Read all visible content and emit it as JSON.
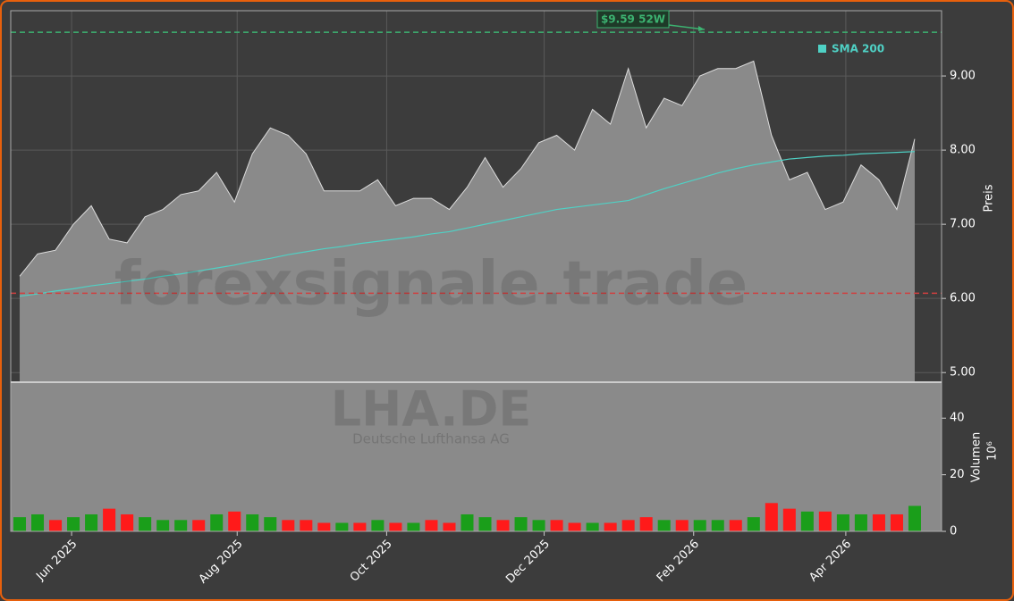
{
  "chart_data": [
    {
      "type": "area",
      "watermark": "forexsignale.trade",
      "ticker": "LHA.DE",
      "company": "Deutsche Lufthansa AG",
      "ylabel": "Preis",
      "annotation": "$9.59 52W",
      "x": [
        0,
        1,
        2,
        3,
        4,
        5,
        6,
        7,
        8,
        9,
        10,
        11,
        12,
        13,
        14,
        15,
        16,
        17,
        18,
        19,
        20,
        21,
        22,
        23,
        24,
        25,
        26,
        27,
        28,
        29,
        30,
        31,
        32,
        33,
        34,
        35,
        36,
        37,
        38,
        39,
        40,
        41,
        42,
        43,
        44,
        45,
        46,
        47,
        48,
        49,
        50
      ],
      "values": [
        6.3,
        6.6,
        6.65,
        7.0,
        7.25,
        6.8,
        6.75,
        7.1,
        7.2,
        7.4,
        7.45,
        7.7,
        7.3,
        7.95,
        8.3,
        8.2,
        7.95,
        7.45,
        7.45,
        7.45,
        7.6,
        7.25,
        7.35,
        7.35,
        7.2,
        7.5,
        7.9,
        7.5,
        7.75,
        8.1,
        8.2,
        8.0,
        8.55,
        8.35,
        9.1,
        8.3,
        8.7,
        8.6,
        9.0,
        9.1,
        9.1,
        9.2,
        8.2,
        7.6,
        7.7,
        7.2,
        7.3,
        7.8,
        7.6,
        7.2,
        8.15
      ],
      "color": "#8a8a8a",
      "sma": {
        "name": "SMA 200",
        "color": "#4fd1c5",
        "values": [
          6.03,
          6.06,
          6.1,
          6.13,
          6.17,
          6.2,
          6.23,
          6.26,
          6.3,
          6.33,
          6.37,
          6.41,
          6.45,
          6.5,
          6.54,
          6.59,
          6.63,
          6.67,
          6.7,
          6.74,
          6.77,
          6.8,
          6.83,
          6.87,
          6.9,
          6.95,
          7.0,
          7.05,
          7.1,
          7.15,
          7.2,
          7.23,
          7.26,
          7.29,
          7.32,
          7.4,
          7.48,
          7.55,
          7.62,
          7.69,
          7.75,
          7.8,
          7.84,
          7.88,
          7.9,
          7.92,
          7.93,
          7.95,
          7.96,
          7.97,
          7.98
        ]
      },
      "high_line": {
        "value": 9.59,
        "color": "#3cb371"
      },
      "low_line": {
        "value": 6.07,
        "color": "#d04040"
      },
      "xlim": [
        -0.5,
        51.5
      ],
      "xticks": [
        {
          "value": 2.9,
          "label": "Jun 2025"
        },
        {
          "value": 12.15,
          "label": "Aug 2025"
        },
        {
          "value": 20.5,
          "label": "Oct 2025"
        },
        {
          "value": 29.3,
          "label": "Dec 2025"
        },
        {
          "value": 37.65,
          "label": "Feb 2026"
        },
        {
          "value": 46.15,
          "label": "Apr 2026"
        }
      ],
      "ylim": [
        4.87,
        9.88
      ],
      "yticks": [
        {
          "value": 5,
          "label": "5.00"
        },
        {
          "value": 6,
          "label": "6.00"
        },
        {
          "value": 7,
          "label": "7.00"
        },
        {
          "value": 8,
          "label": "8.00"
        },
        {
          "value": 9,
          "label": "9.00"
        }
      ],
      "grid": true
    },
    {
      "type": "bar",
      "ylabel": "Volumen",
      "unit": "10⁶",
      "values": [
        5,
        6,
        4,
        5,
        6,
        8,
        6,
        5,
        4,
        4,
        4,
        6,
        7,
        6,
        5,
        4,
        4,
        3,
        3,
        3,
        4,
        3,
        3,
        4,
        3,
        6,
        5,
        4,
        5,
        4,
        4,
        3,
        3,
        3,
        4,
        5,
        4,
        4,
        4,
        4,
        4,
        5,
        10,
        8,
        7,
        7,
        6,
        6,
        6,
        6,
        9
      ],
      "colors": [
        "#1a9e1a",
        "#1a9e1a",
        "#ff1a1a",
        "#1a9e1a",
        "#1a9e1a",
        "#ff1a1a",
        "#ff1a1a",
        "#1a9e1a",
        "#1a9e1a",
        "#1a9e1a",
        "#ff1a1a",
        "#1a9e1a",
        "#ff1a1a",
        "#1a9e1a",
        "#1a9e1a",
        "#ff1a1a",
        "#ff1a1a",
        "#ff1a1a",
        "#1a9e1a",
        "#ff1a1a",
        "#1a9e1a",
        "#ff1a1a",
        "#1a9e1a",
        "#ff1a1a",
        "#ff1a1a",
        "#1a9e1a",
        "#1a9e1a",
        "#ff1a1a",
        "#1a9e1a",
        "#1a9e1a",
        "#ff1a1a",
        "#ff1a1a",
        "#1a9e1a",
        "#ff1a1a",
        "#ff1a1a",
        "#ff1a1a",
        "#1a9e1a",
        "#ff1a1a",
        "#1a9e1a",
        "#1a9e1a",
        "#ff1a1a",
        "#1a9e1a",
        "#ff1a1a",
        "#ff1a1a",
        "#1a9e1a",
        "#ff1a1a",
        "#1a9e1a",
        "#1a9e1a",
        "#ff1a1a",
        "#ff1a1a",
        "#1a9e1a"
      ],
      "ylim": [
        0,
        52.7
      ],
      "yticks": [
        0,
        20,
        40
      ]
    }
  ]
}
